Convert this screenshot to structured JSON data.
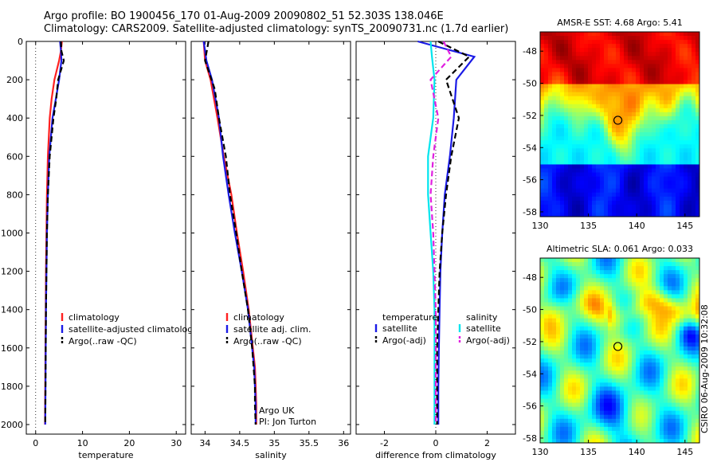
{
  "header": {
    "line1": "Argo profile: BO 1900456_170 01-Aug-2009 20090802_51 52.303S 138.046E",
    "line2": "Climatology: CARS2009. Satellite-adjusted climatology: synTS_20090731.nc (1.7d earlier)"
  },
  "side_label": "CSIRO 06-Aug-2009 10:32:08",
  "colors": {
    "climatology": "#ff2020",
    "satellite": "#1a1ae6",
    "argo": "#000000",
    "satellite_salinity": "#00e5ee",
    "argo_salinity": "#e020e0"
  },
  "chart_data": [
    {
      "type": "line",
      "xlabel": "temperature",
      "ylabel": "",
      "xlim": [
        -2,
        32
      ],
      "ylim": [
        2050,
        0
      ],
      "xticks": [
        0,
        10,
        20,
        30
      ],
      "yticks": [
        0,
        200,
        400,
        600,
        800,
        1000,
        1200,
        1400,
        1600,
        1800,
        2000
      ],
      "legend": {
        "placement": "lower-left",
        "entries": [
          "climatology",
          "satellite-adjusted climatology",
          "Argo(..raw -QC)"
        ]
      },
      "series": [
        {
          "name": "climatology",
          "color": "climatology",
          "x": [
            5.6,
            5.4,
            5.0,
            4.0,
            3.4,
            3.0,
            2.6,
            2.4,
            2.3,
            2.2,
            2.15,
            2.1,
            2.05,
            2.0
          ],
          "y": [
            0,
            50,
            100,
            200,
            300,
            400,
            600,
            800,
            1000,
            1200,
            1400,
            1600,
            1800,
            2000
          ]
        },
        {
          "name": "satellite-adjusted climatology",
          "color": "satellite",
          "x": [
            5.2,
            5.4,
            5.5,
            5.0,
            4.3,
            3.6,
            2.9,
            2.6,
            2.4,
            2.3,
            2.2,
            2.15,
            2.1,
            2.05
          ],
          "y": [
            0,
            50,
            100,
            200,
            300,
            400,
            600,
            800,
            1000,
            1200,
            1400,
            1600,
            1800,
            2000
          ]
        },
        {
          "name": "Argo(..raw -QC)",
          "color": "argo",
          "dash": true,
          "x": [
            5.4,
            5.5,
            6.0,
            4.8,
            4.4,
            3.8,
            3.0,
            2.6,
            2.4,
            2.3,
            2.2,
            2.15,
            2.1,
            2.05
          ],
          "y": [
            0,
            50,
            100,
            200,
            300,
            400,
            600,
            800,
            1000,
            1200,
            1400,
            1600,
            1800,
            2000
          ]
        }
      ]
    },
    {
      "type": "line",
      "xlabel": "salinity",
      "ylabel": "",
      "xlim": [
        33.8,
        36.1
      ],
      "ylim": [
        2050,
        0
      ],
      "xticks": [
        34,
        34.5,
        35,
        35.5,
        36
      ],
      "yticks": [
        0,
        200,
        400,
        600,
        800,
        1000,
        1200,
        1400,
        1600,
        1800,
        2000
      ],
      "legend": {
        "placement": "lower-left",
        "entries": [
          "climatology",
          "satellite adj. clim.",
          "Argo(..raw -QC)"
        ]
      },
      "annotation": [
        "Argo UK",
        "PI: Jon Turton"
      ],
      "series": [
        {
          "name": "climatology",
          "color": "climatology",
          "x": [
            33.98,
            34.0,
            34.08,
            34.18,
            34.27,
            34.38,
            34.46,
            34.55,
            34.63,
            34.69,
            34.72,
            34.73,
            34.74,
            34.74
          ],
          "y": [
            0,
            100,
            200,
            400,
            600,
            800,
            1000,
            1200,
            1400,
            1600,
            1700,
            1800,
            1900,
            2000
          ]
        },
        {
          "name": "satellite adj. clim.",
          "color": "satellite",
          "x": [
            33.98,
            34.02,
            34.1,
            34.2,
            34.26,
            34.34,
            34.43,
            34.53,
            34.62,
            34.68,
            34.71,
            34.72,
            34.73,
            34.73
          ],
          "y": [
            0,
            100,
            200,
            400,
            600,
            800,
            1000,
            1200,
            1400,
            1600,
            1700,
            1800,
            1900,
            2000
          ]
        },
        {
          "name": "Argo(..raw -QC)",
          "color": "argo",
          "dash": true,
          "x": [
            34.05,
            34.0,
            34.14,
            34.2,
            34.3,
            34.36,
            34.45,
            34.53,
            34.62,
            34.68,
            34.7,
            34.72,
            34.72,
            34.73
          ],
          "y": [
            0,
            100,
            250,
            400,
            600,
            800,
            1000,
            1200,
            1400,
            1600,
            1700,
            1800,
            1900,
            2000
          ]
        }
      ]
    },
    {
      "type": "line",
      "xlabel": "difference from climatology",
      "ylabel": "",
      "xlim": [
        -3.1,
        3.1
      ],
      "ylim": [
        2050,
        0
      ],
      "xticks": [
        -2,
        0,
        2
      ],
      "yticks": [
        0,
        200,
        400,
        600,
        800,
        1000,
        1200,
        1400,
        1600,
        1800,
        2000
      ],
      "legend": {
        "placement": "lower-center",
        "column_headers": [
          "temperature",
          "salinity"
        ],
        "entries": [
          "satellite",
          "Argo(-adj)",
          "satellite",
          "Argo(-adj)"
        ]
      },
      "series": [
        {
          "name": "satellite",
          "group": "temperature",
          "color": "satellite",
          "x": [
            -0.7,
            1.5,
            0.8,
            0.7,
            0.55,
            0.35,
            0.25,
            0.18,
            0.15,
            0.12,
            0.1,
            0.1
          ],
          "y": [
            0,
            80,
            200,
            400,
            600,
            800,
            1000,
            1200,
            1400,
            1600,
            1800,
            2000
          ]
        },
        {
          "name": "Argo(-adj)",
          "group": "temperature",
          "color": "argo",
          "dash": true,
          "x": [
            0.1,
            1.3,
            0.4,
            0.9,
            0.6,
            0.4,
            0.25,
            0.15,
            0.1,
            0.05,
            0.05,
            0.05
          ],
          "y": [
            0,
            80,
            200,
            400,
            600,
            800,
            1000,
            1200,
            1400,
            1600,
            1800,
            2000
          ]
        },
        {
          "name": "satellite",
          "group": "salinity",
          "color": "satellite_salinity",
          "x": [
            -0.2,
            -0.15,
            -0.05,
            -0.1,
            -0.3,
            -0.3,
            -0.2,
            -0.1,
            -0.05,
            -0.05,
            -0.05,
            -0.05
          ],
          "y": [
            0,
            80,
            200,
            400,
            600,
            800,
            1000,
            1200,
            1400,
            1600,
            1800,
            2000
          ]
        },
        {
          "name": "Argo(-adj)",
          "group": "salinity",
          "color": "argo_salinity",
          "dash": true,
          "x": [
            0.3,
            0.6,
            -0.2,
            0.1,
            -0.1,
            -0.2,
            -0.1,
            -0.05,
            0.0,
            0.0,
            0.0,
            0.0
          ],
          "y": [
            0,
            80,
            200,
            400,
            600,
            800,
            1000,
            1200,
            1400,
            1600,
            1800,
            2000
          ]
        }
      ]
    },
    {
      "type": "heatmap",
      "title": "AMSR-E SST: 4.68 Argo: 5.41",
      "xlim": [
        130,
        146.5
      ],
      "ylim": [
        -58.3,
        -46.8
      ],
      "xticks": [
        130,
        135,
        140,
        145
      ],
      "yticks": [
        -48,
        -50,
        -52,
        -54,
        -56,
        -58
      ],
      "colormap": "jet",
      "marker": {
        "lon": 138.05,
        "lat": -52.3
      }
    },
    {
      "type": "heatmap",
      "title": "Altimetric SLA: 0.061 Argo: 0.033",
      "xlim": [
        130,
        146.5
      ],
      "ylim": [
        -58.3,
        -46.8
      ],
      "xticks": [
        130,
        135,
        140,
        145
      ],
      "yticks": [
        -48,
        -50,
        -52,
        -54,
        -56,
        -58
      ],
      "colormap": "jet",
      "marker": {
        "lon": 138.05,
        "lat": -52.3
      }
    }
  ]
}
